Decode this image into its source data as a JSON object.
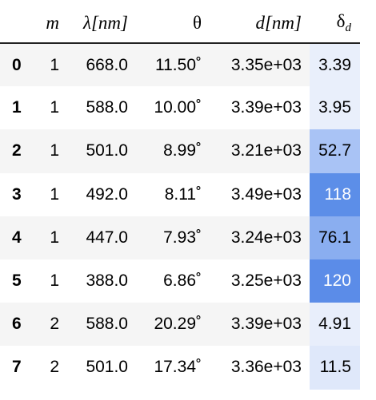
{
  "table": {
    "headers": {
      "index": "",
      "m": "m",
      "lambda_symbol": "λ",
      "lambda_unit": "[nm]",
      "theta": "θ",
      "d_symbol": "d",
      "d_unit": "[nm]",
      "delta_symbol": "δ",
      "delta_sub": "d"
    },
    "rows": [
      {
        "idx": "0",
        "m": "1",
        "lambda": "668.0",
        "theta": "11.50˚",
        "d": "3.35e+03",
        "delta": "3.39",
        "delta_bg": "#e9effb",
        "delta_fg": "#000000"
      },
      {
        "idx": "1",
        "m": "1",
        "lambda": "588.0",
        "theta": "10.00˚",
        "d": "3.39e+03",
        "delta": "3.95",
        "delta_bg": "#e9effb",
        "delta_fg": "#000000"
      },
      {
        "idx": "2",
        "m": "1",
        "lambda": "501.0",
        "theta": "8.99˚",
        "d": "3.21e+03",
        "delta": "52.7",
        "delta_bg": "#a9c3f5",
        "delta_fg": "#000000"
      },
      {
        "idx": "3",
        "m": "1",
        "lambda": "492.0",
        "theta": "8.11˚",
        "d": "3.49e+03",
        "delta": "118",
        "delta_bg": "#5c8ee8",
        "delta_fg": "#ffffff"
      },
      {
        "idx": "4",
        "m": "1",
        "lambda": "447.0",
        "theta": "7.93˚",
        "d": "3.24e+03",
        "delta": "76.1",
        "delta_bg": "#8aaef0",
        "delta_fg": "#000000"
      },
      {
        "idx": "5",
        "m": "1",
        "lambda": "388.0",
        "theta": "6.86˚",
        "d": "3.25e+03",
        "delta": "120",
        "delta_bg": "#5b8ce8",
        "delta_fg": "#ffffff"
      },
      {
        "idx": "6",
        "m": "2",
        "lambda": "588.0",
        "theta": "20.29˚",
        "d": "3.39e+03",
        "delta": "4.91",
        "delta_bg": "#e8eefb",
        "delta_fg": "#000000"
      },
      {
        "idx": "7",
        "m": "2",
        "lambda": "501.0",
        "theta": "17.34˚",
        "d": "3.36e+03",
        "delta": "11.5",
        "delta_bg": "#dfe8fa",
        "delta_fg": "#000000"
      }
    ]
  }
}
